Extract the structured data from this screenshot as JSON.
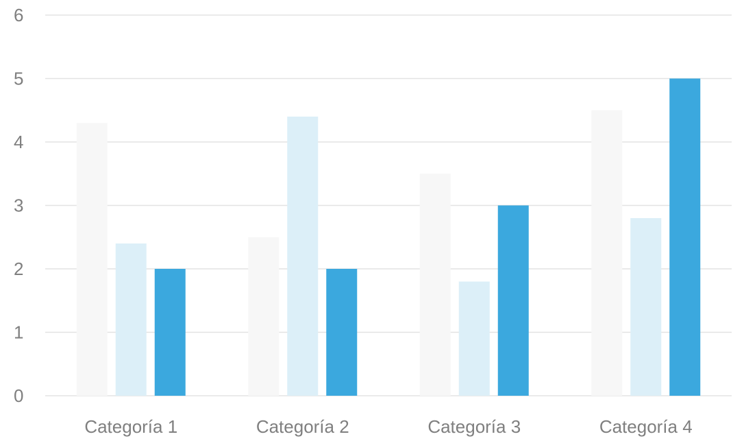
{
  "chart_data": {
    "type": "bar",
    "categories": [
      "Categoría 1",
      "Categoría 2",
      "Categoría 3",
      "Categoría 4"
    ],
    "series": [
      {
        "values": [
          4.3,
          2.5,
          3.5,
          4.5
        ],
        "color": "#f7f7f7"
      },
      {
        "values": [
          2.4,
          4.4,
          1.8,
          2.8
        ],
        "color": "#dceff8"
      },
      {
        "values": [
          2,
          2,
          3,
          5
        ],
        "color": "#3ba8de"
      }
    ],
    "ylim": [
      0,
      6
    ],
    "yticks": [
      "0",
      "1",
      "2",
      "3",
      "4",
      "5",
      "6"
    ],
    "grid": true,
    "legend": "none",
    "title": "",
    "xlabel": "",
    "ylabel": ""
  }
}
